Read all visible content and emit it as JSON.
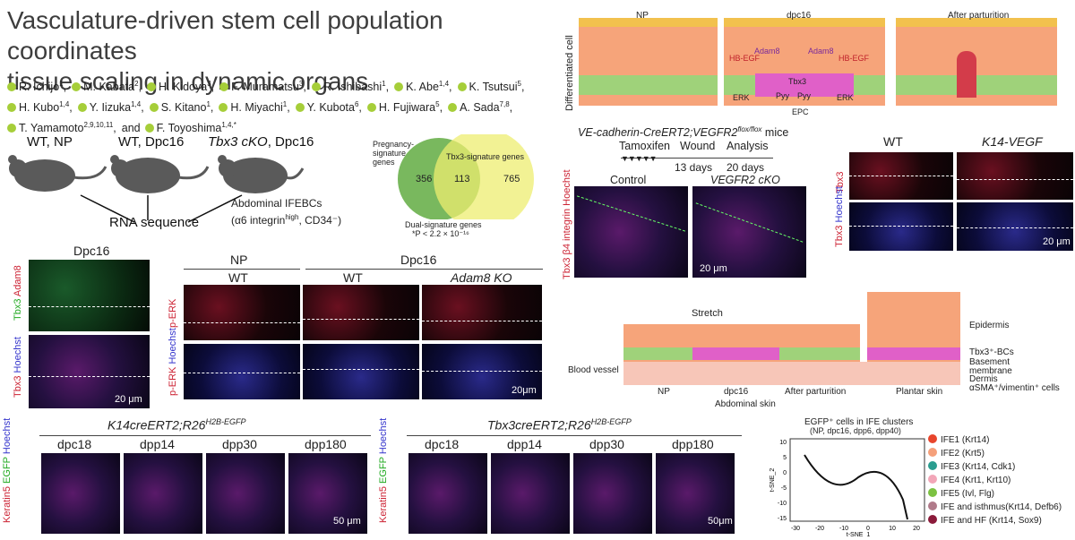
{
  "paper": {
    "title_line1": "Vasculature-driven stem cell population coordinates",
    "title_line2": "tissue scaling in dynamic organs",
    "authors": [
      {
        "name": "R. Ichijo",
        "aff": "1"
      },
      {
        "name": "M. Kabata",
        "aff": "2"
      },
      {
        "name": "H. Kidoya",
        "aff": "3"
      },
      {
        "name": "F. Muramatsu",
        "aff": "3"
      },
      {
        "name": "R. Ishibashi",
        "aff": "1"
      },
      {
        "name": "K. Abe",
        "aff": "1,4"
      },
      {
        "name": "K. Tsutsui",
        "aff": "5"
      },
      {
        "name": "H. Kubo",
        "aff": "1,4"
      },
      {
        "name": "Y. Iizuka",
        "aff": "1,4"
      },
      {
        "name": "S. Kitano",
        "aff": "1"
      },
      {
        "name": "H. Miyachi",
        "aff": "1"
      },
      {
        "name": "Y. Kubota",
        "aff": "6"
      },
      {
        "name": "H. Fujiwara",
        "aff": "5"
      },
      {
        "name": "A. Sada",
        "aff": "7,8"
      },
      {
        "name": "T. Yamamoto",
        "aff": "2,9,10,11"
      },
      {
        "name": "F. Toyoshima",
        "aff": "1,4,*"
      }
    ],
    "authors_and": "and"
  },
  "mice_panel": {
    "wt_np": "WT, NP",
    "wt_dpc16": "WT, Dpc16",
    "tbx3_cko": "Tbx3 cKO",
    "tbx3_cko_suffix": ", Dpc16",
    "abdominal": "Abdominal IFEBCs",
    "integrin": "(α6 integrin",
    "integrin_sup": "high",
    "integrin_tail": ", CD34⁻)",
    "rna_seq": "RNA sequence"
  },
  "venn": {
    "left_label": "Pregnancy-signature genes",
    "right_label": "Tbx3-signature genes",
    "left_only": "356",
    "overlap": "113",
    "right_only": "765",
    "dual_label": "Dual-signature genes",
    "pvalue": "*P < 2.2 × 10⁻¹⁶",
    "left_color": "#6ab04c",
    "right_color": "#eeee70"
  },
  "schematic_top": {
    "np": "NP",
    "dpc16": "dpc16",
    "after": "After parturition",
    "diff_cell": "Differentiated cell",
    "hbegf": "HB-EGF",
    "adam8": "Adam8",
    "tbx3": "Tbx3",
    "erk": "ERK",
    "pyy": "Pyy",
    "epc": "EPC"
  },
  "vecad_panel": {
    "title": "VE-cadherin-CreERT2;VEGFR2",
    "title_sup": "flox/flox",
    "title_tail": " mice",
    "tamoxifen": "Tamoxifen",
    "wound": "Wound",
    "analysis": "Analysis",
    "days13": "13 days",
    "days20": "20 days",
    "control": "Control",
    "vegfr2": "VEGFR2 cKO",
    "stain_left": "Tbx3 β4 integrin Hoechst",
    "scale": "20 μm"
  },
  "k14_panel": {
    "wt": "WT",
    "k14vegf": "K14-VEGF",
    "tbx3": "Tbx3",
    "tbx3_h": "Tbx3",
    "hoechst": "Hoechst",
    "scale": "20 μm"
  },
  "dpc16_panel": {
    "title": "Dpc16",
    "tbx3": "Tbx3",
    "adam8": "Adam8",
    "hoechst": "Hoechst",
    "scale": "20 μm"
  },
  "perk_panel": {
    "np": "NP",
    "dpc16": "Dpc16",
    "wt1": "WT",
    "wt2": "WT",
    "adam8ko": "Adam8 KO",
    "perk": "p-ERK",
    "perk2": "p-ERK",
    "hoechst": "Hoechst",
    "scale": "20μm"
  },
  "skin_schematic": {
    "stretch": "Stretch",
    "epidermis": "Epidermis",
    "tbx3bcs": "Tbx3⁺-BCs",
    "basement": "Basement membrane",
    "blood": "Blood vessel",
    "dermis": "Dermis",
    "asma": "αSMA⁺/vimentin⁺ cells",
    "np": "NP",
    "dpc16": "dpc16",
    "after": "After parturition",
    "plantar": "Plantar skin",
    "abdominal": "Abdominal skin"
  },
  "lineage_left": {
    "title": "K14creERT2;R26",
    "title_sup": "H2B-EGFP",
    "cols": [
      "dpc18",
      "dpp14",
      "dpp30",
      "dpp180"
    ],
    "stain1": "Keratin5",
    "stain2": "EGFP",
    "stain3": "Hoechst",
    "scale": "50 μm"
  },
  "lineage_right": {
    "title": "Tbx3creERT2;R26",
    "title_sup": "H2B-EGFP",
    "cols": [
      "dpc18",
      "dpp14",
      "dpp30",
      "dpp180"
    ],
    "stain1": "Keratin5",
    "stain2": "EGFP",
    "stain3": "Hoechst",
    "scale": "50μm"
  },
  "tsne": {
    "title": "EGFP⁺ cells in IFE clusters",
    "subtitle": "(NP, dpc16, dpp6, dpp40)",
    "xlabel": "t-SNE_1",
    "ylabel": "t-SNE_2",
    "xticks": [
      "-30",
      "-20",
      "-10",
      "0",
      "10",
      "20"
    ],
    "yticks": [
      "10",
      "5",
      "0",
      "-5",
      "-10",
      "-15"
    ],
    "legend": [
      {
        "label": "IFE1 (Krt14)",
        "color": "#e8452c"
      },
      {
        "label": "IFE2 (Krt5)",
        "color": "#f5a07a"
      },
      {
        "label": "IFE3 (Krt14, Cdk1)",
        "color": "#2a9d8f"
      },
      {
        "label": "IFE4 (Krt1, Krt10)",
        "color": "#f2a6b8"
      },
      {
        "label": "IFE5 (Ivl, Flg)",
        "color": "#7cc242"
      },
      {
        "label": "IFE and isthmus(Krt14, Defb6)",
        "color": "#b07a8a"
      },
      {
        "label": "IFE and HF (Krt14, Sox9)",
        "color": "#8b1a3a"
      }
    ]
  }
}
